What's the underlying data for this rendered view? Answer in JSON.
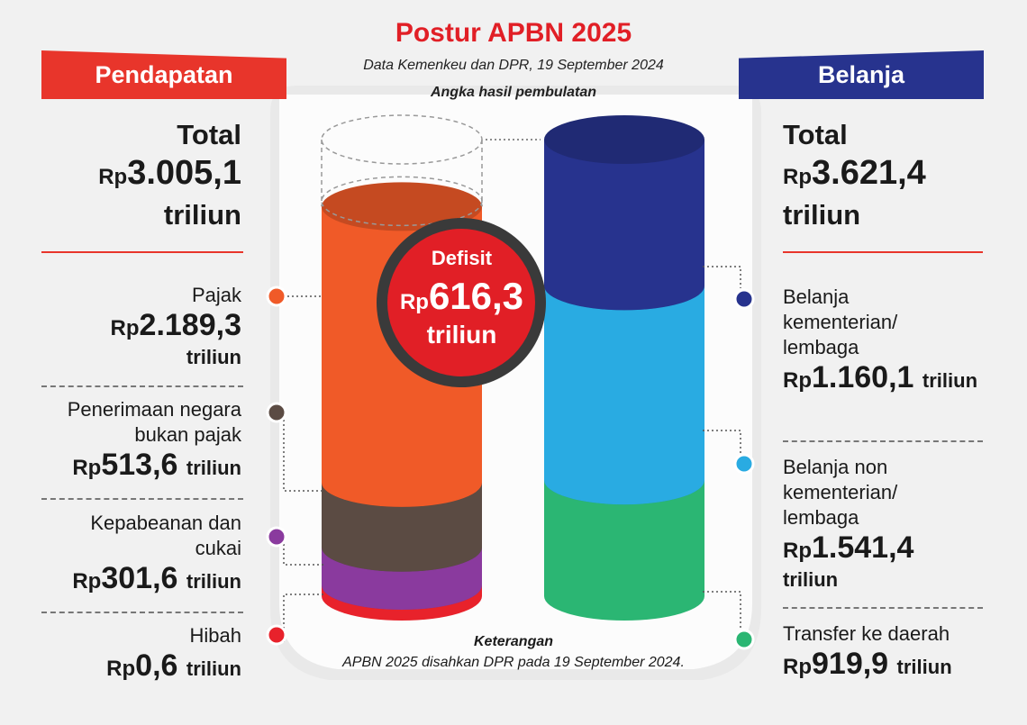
{
  "header": {
    "title": "Postur APBN 2025",
    "subtitle": "Data Kemenkeu dan DPR, 19 September 2024",
    "rounding_note": "Angka hasil pembulatan"
  },
  "left": {
    "banner": "Pendapatan",
    "total_label": "Total",
    "total_rp": "Rp",
    "total_value": "3.005,1",
    "total_unit": "triliun",
    "items": [
      {
        "lines": [
          "Pajak"
        ],
        "rp": "Rp",
        "value": "2.189,3",
        "unit": "triliun",
        "color": "#f05a28"
      },
      {
        "lines": [
          "Penerimaan negara",
          "bukan pajak"
        ],
        "rp": "Rp",
        "value": "513,6",
        "unit": "triliun",
        "color": "#5b4b43"
      },
      {
        "lines": [
          "Kepabeanan dan",
          "cukai"
        ],
        "rp": "Rp",
        "value": "301,6",
        "unit": "triliun",
        "color": "#8a3a9e"
      },
      {
        "lines": [
          "Hibah"
        ],
        "rp": "Rp",
        "value": "0,6",
        "unit": "triliun",
        "color": "#e8222b"
      }
    ]
  },
  "right": {
    "banner": "Belanja",
    "total_label": "Total",
    "total_rp": "Rp",
    "total_value": "3.621,4",
    "total_unit": "triliun",
    "items": [
      {
        "lines": [
          "Belanja",
          "kementerian/",
          "lembaga"
        ],
        "rp": "Rp",
        "value": "1.160,1",
        "unit": "triliun",
        "color": "#27338e"
      },
      {
        "lines": [
          "Belanja non",
          "kementerian/",
          "lembaga"
        ],
        "rp": "Rp",
        "value": "1.541,4",
        "unit": "triliun",
        "color": "#29abe2"
      },
      {
        "lines": [
          "Transfer ke daerah"
        ],
        "rp": "Rp",
        "value": "919,9",
        "unit": "triliun",
        "color": "#2bb673"
      }
    ]
  },
  "deficit": {
    "label": "Defisit",
    "rp": "Rp",
    "value": "616,3",
    "unit": "triliun"
  },
  "footer": {
    "title": "Keterangan",
    "text": "APBN 2025 disahkan DPR pada 19 September 2024."
  },
  "chart_data": {
    "type": "bar",
    "stacked": true,
    "unit": "Rp triliun",
    "categories": [
      "Pendapatan",
      "Belanja"
    ],
    "series": [
      {
        "name": "Pajak",
        "category": "Pendapatan",
        "value": 2189.3,
        "color": "#f05a28"
      },
      {
        "name": "Penerimaan negara bukan pajak",
        "category": "Pendapatan",
        "value": 513.6,
        "color": "#5b4b43"
      },
      {
        "name": "Kepabeanan dan cukai",
        "category": "Pendapatan",
        "value": 301.6,
        "color": "#8a3a9e"
      },
      {
        "name": "Hibah",
        "category": "Pendapatan",
        "value": 0.6,
        "color": "#e8222b"
      },
      {
        "name": "Belanja kementerian/lembaga",
        "category": "Belanja",
        "value": 1160.1,
        "color": "#27338e"
      },
      {
        "name": "Belanja non kementerian/lembaga",
        "category": "Belanja",
        "value": 1541.4,
        "color": "#29abe2"
      },
      {
        "name": "Transfer ke daerah",
        "category": "Belanja",
        "value": 919.9,
        "color": "#2bb673"
      }
    ],
    "totals": {
      "Pendapatan": 3005.1,
      "Belanja": 3621.4
    },
    "deficit": 616.3
  }
}
